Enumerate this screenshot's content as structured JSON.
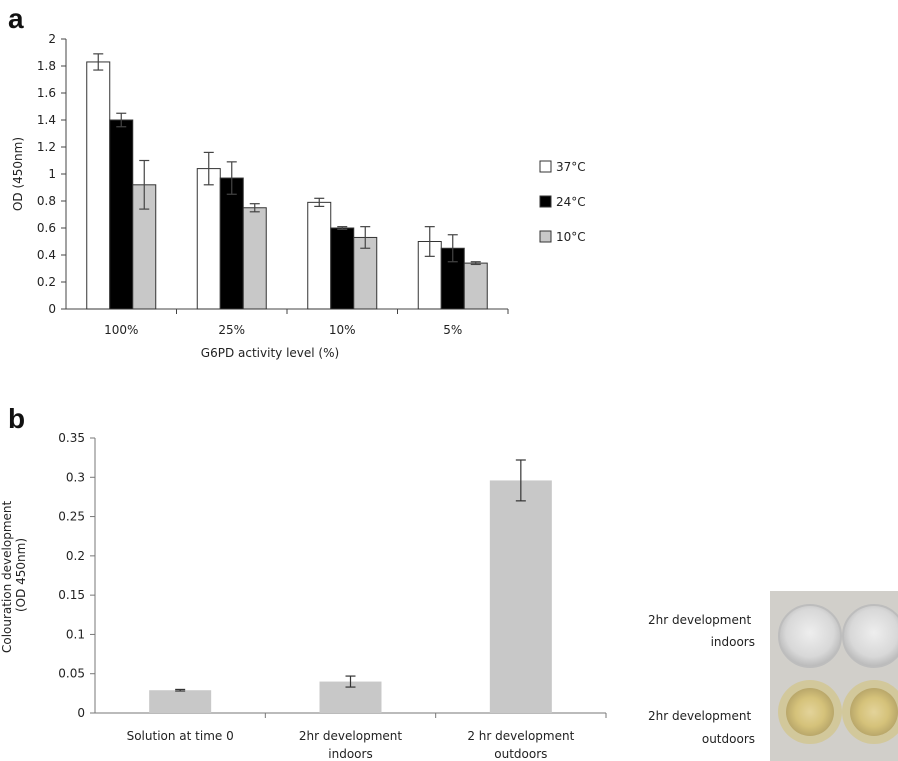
{
  "panels": {
    "a": "a",
    "b": "b"
  },
  "chart_data": [
    {
      "type": "bar",
      "panel": "a",
      "categories": [
        "100%",
        "25%",
        "10%",
        "5%"
      ],
      "series": [
        {
          "name": "37°C",
          "color": "#ffffff",
          "values": [
            1.83,
            1.04,
            0.79,
            0.5
          ],
          "errors": [
            0.06,
            0.12,
            0.03,
            0.11
          ]
        },
        {
          "name": "24°C",
          "color": "#000000",
          "values": [
            1.4,
            0.97,
            0.6,
            0.45
          ],
          "errors": [
            0.05,
            0.12,
            0.01,
            0.1
          ]
        },
        {
          "name": "10°C",
          "color": "#c8c8c8",
          "values": [
            0.92,
            0.75,
            0.53,
            0.34
          ],
          "errors": [
            0.18,
            0.03,
            0.08,
            0.01
          ]
        }
      ],
      "yticks": [
        "0",
        "0.2",
        "0.4",
        "0.6",
        "0.8",
        "1",
        "1.2",
        "1.4",
        "1.6",
        "1.8",
        "2"
      ],
      "ylim": [
        0,
        2
      ],
      "xlabel": "G6PD activity level (%)",
      "ylabel": "OD (450nm)",
      "legend_position": "right",
      "grid": false
    },
    {
      "type": "bar",
      "panel": "b",
      "categories": [
        [
          "Solution at time 0"
        ],
        [
          "2hr development",
          "indoors"
        ],
        [
          "2 hr development",
          "outdoors"
        ]
      ],
      "values": [
        0.029,
        0.04,
        0.296
      ],
      "errors": [
        0.001,
        0.007,
        0.026
      ],
      "color": "#c8c8c8",
      "yticks": [
        "0",
        "0.05",
        "0.1",
        "0.15",
        "0.2",
        "0.25",
        "0.3",
        "0.35"
      ],
      "ylim": [
        0,
        0.35
      ],
      "xlabel": "",
      "ylabel": [
        "Colouration development",
        "(OD 450nm)"
      ],
      "grid": false
    }
  ],
  "photo": {
    "label_top": [
      "2hr development",
      "indoors"
    ],
    "label_bottom": [
      "2hr development",
      "outdoors"
    ]
  }
}
